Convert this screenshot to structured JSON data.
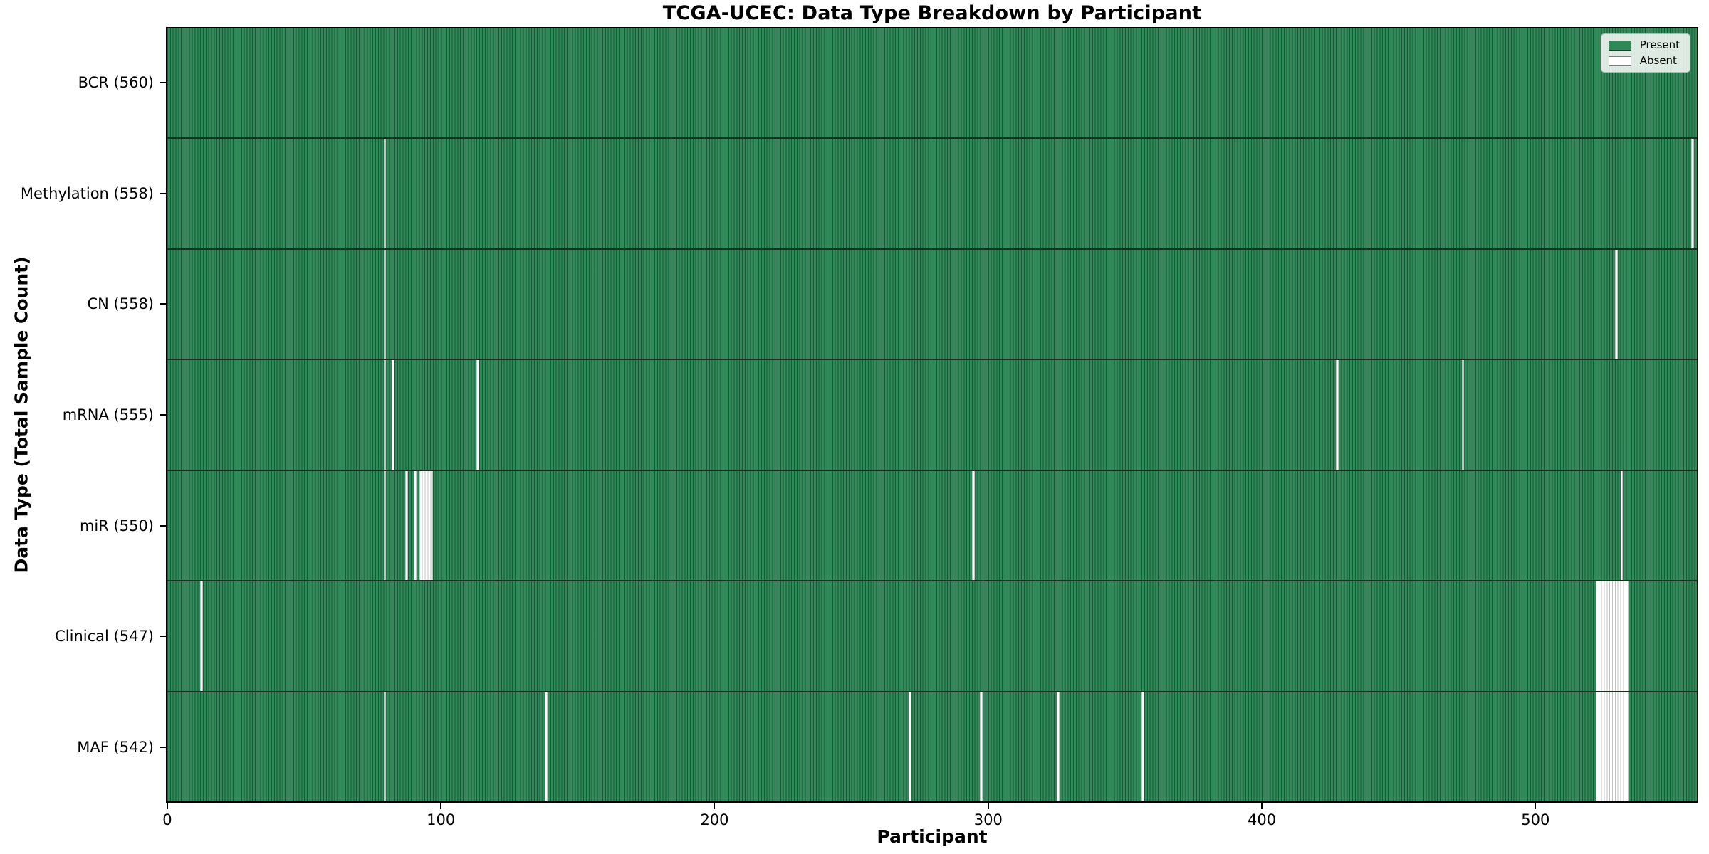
{
  "chart_data": {
    "type": "heatmap",
    "title": "TCGA-UCEC: Data Type Breakdown by Participant",
    "xlabel": "Participant",
    "ylabel": "Data Type (Total Sample Count)",
    "x_ticks": [
      0,
      100,
      200,
      300,
      400,
      500
    ],
    "xlim": [
      -0.5,
      559.5
    ],
    "n_participants": 560,
    "grid": false,
    "present_color": "#2e8b57",
    "absent_color": "#ffffff",
    "legend": {
      "position": "upper right",
      "entries": [
        {
          "label": "Present",
          "color": "#2e8b57"
        },
        {
          "label": "Absent",
          "color": "#ffffff"
        }
      ]
    },
    "rows": [
      {
        "data_type": "BCR",
        "label": "BCR (560)",
        "total": 560,
        "absent_participants": []
      },
      {
        "data_type": "Methylation",
        "label": "Methylation (558)",
        "total": 558,
        "absent_participants": [
          79,
          557
        ]
      },
      {
        "data_type": "CN",
        "label": "CN (558)",
        "total": 558,
        "absent_participants": [
          79,
          529
        ]
      },
      {
        "data_type": "mRNA",
        "label": "mRNA (555)",
        "total": 555,
        "absent_participants": [
          79,
          82,
          113,
          427,
          473
        ]
      },
      {
        "data_type": "miR",
        "label": "miR (550)",
        "total": 550,
        "absent_participants": [
          79,
          87,
          90,
          92,
          93,
          94,
          95,
          96,
          294,
          531
        ]
      },
      {
        "data_type": "Clinical",
        "label": "Clinical (547)",
        "total": 547,
        "absent_participants": [
          12,
          522,
          523,
          524,
          525,
          526,
          527,
          528,
          529,
          530,
          531,
          532,
          533
        ]
      },
      {
        "data_type": "MAF",
        "label": "MAF (542)",
        "total": 542,
        "absent_participants": [
          79,
          138,
          271,
          297,
          325,
          356,
          522,
          523,
          524,
          525,
          526,
          527,
          528,
          529,
          530,
          531,
          532,
          533
        ]
      }
    ]
  }
}
